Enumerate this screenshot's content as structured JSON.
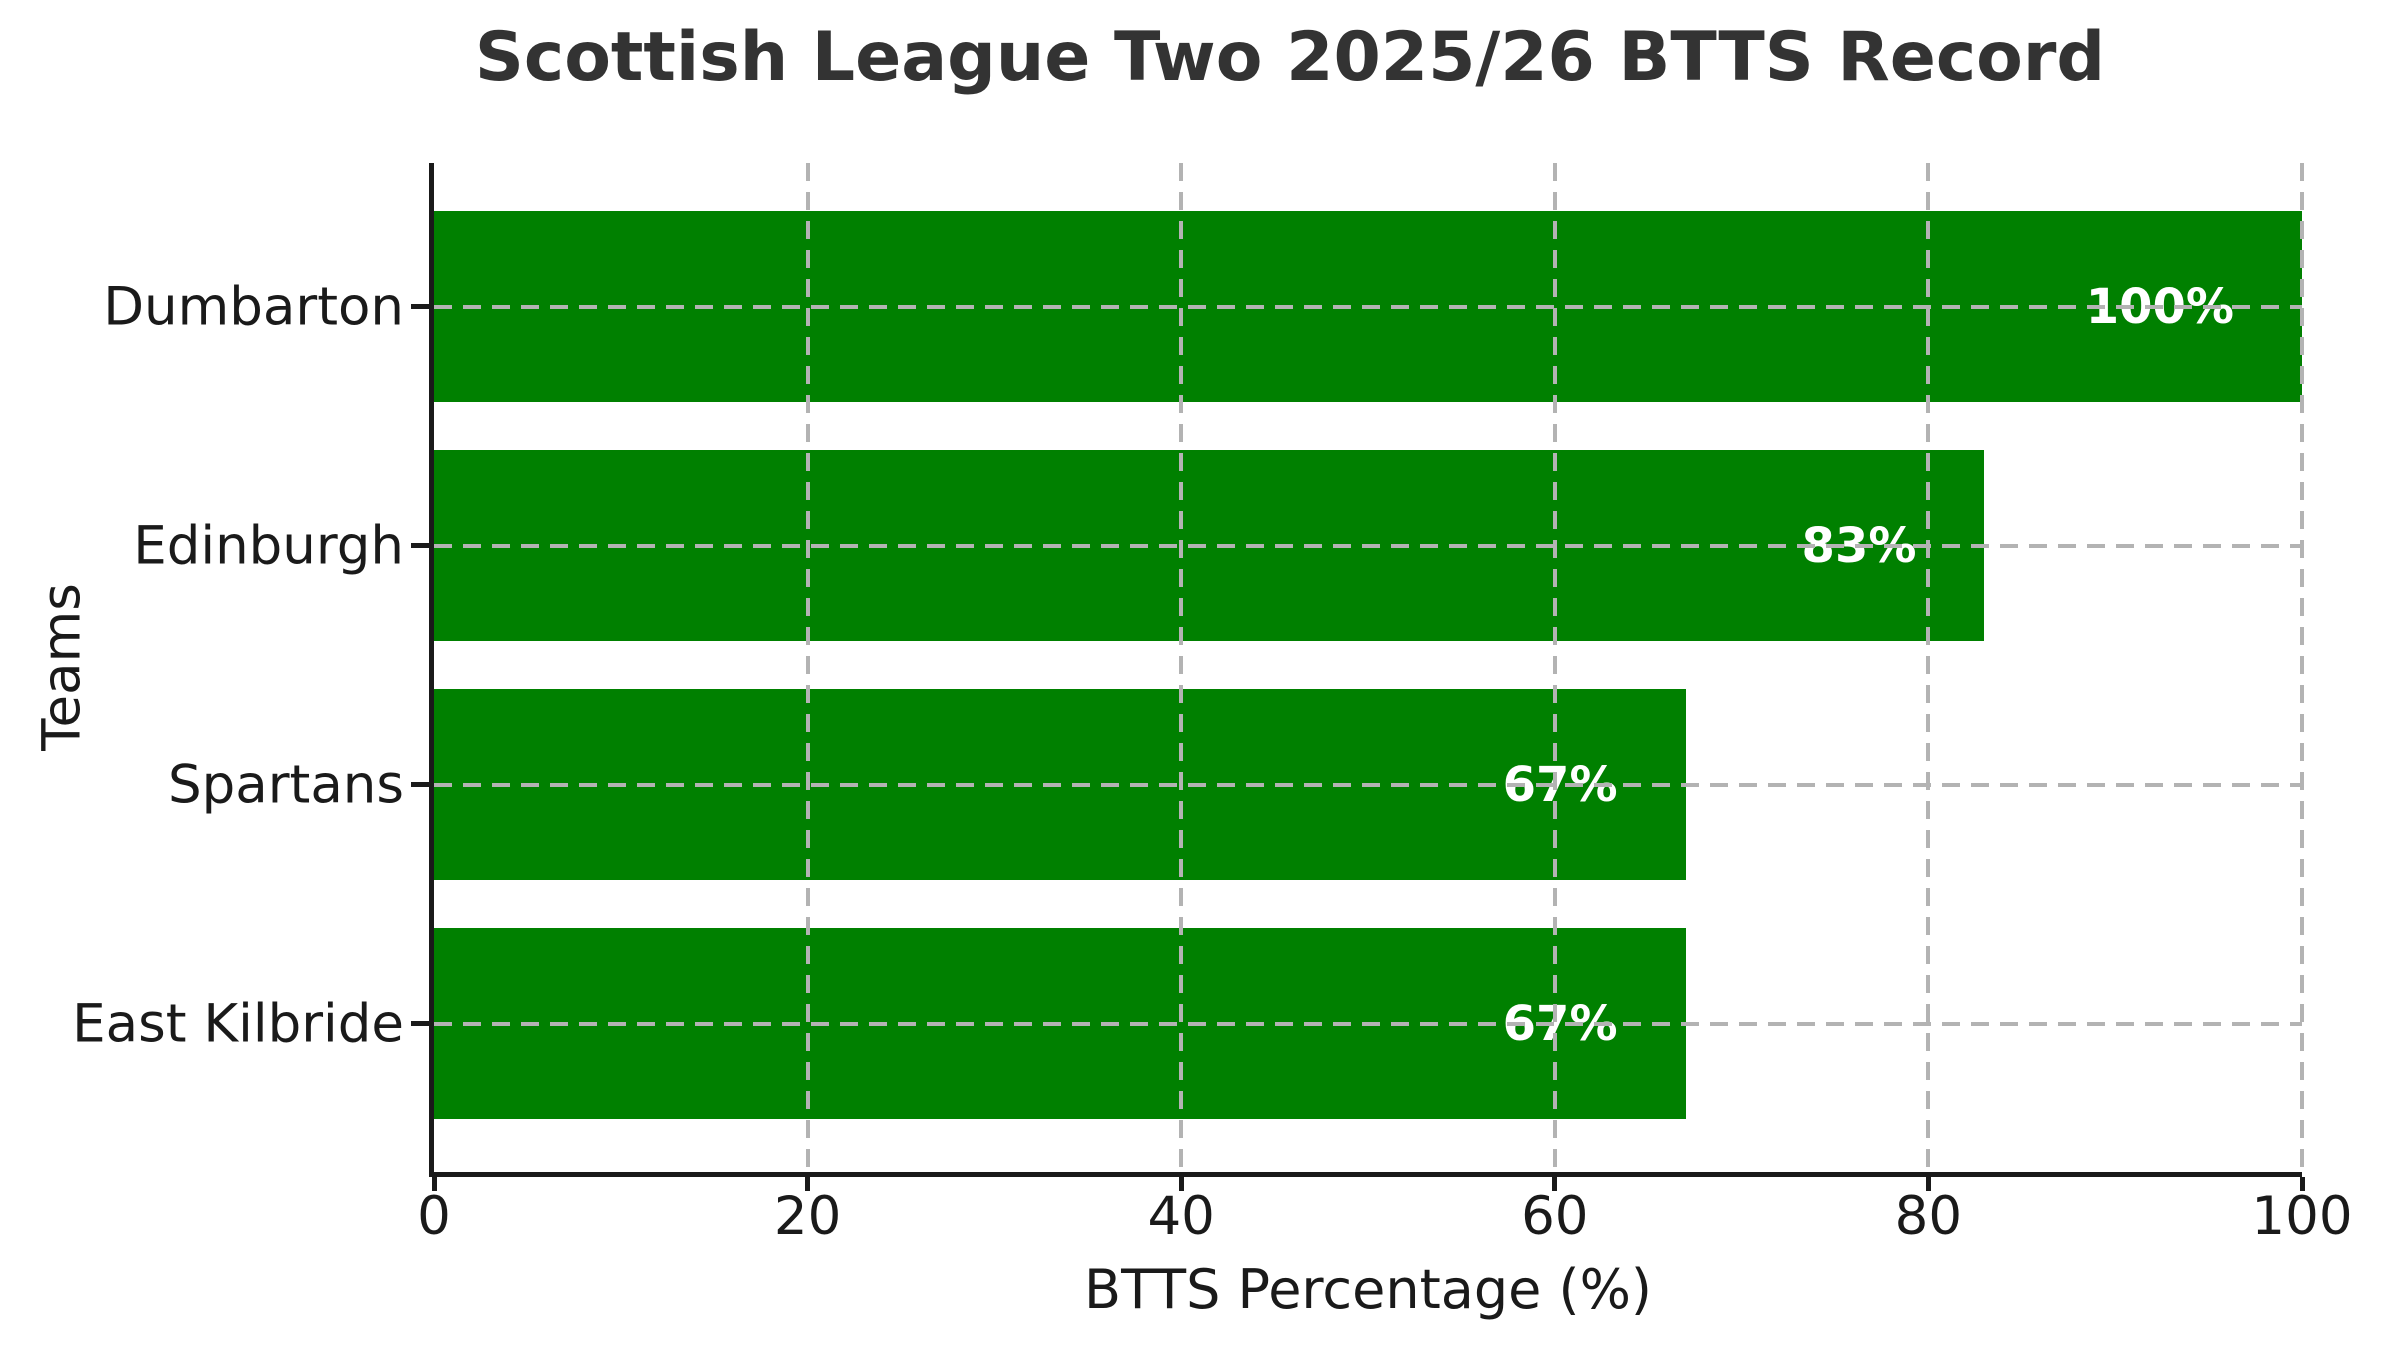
{
  "chart_data": {
    "type": "bar",
    "orientation": "horizontal",
    "title": "Scottish League Two 2025/26 BTTS Record",
    "xlabel": "BTTS Percentage (%)",
    "ylabel": "Teams",
    "categories": [
      "Dumbarton",
      "Edinburgh",
      "Spartans",
      "East Kilbride"
    ],
    "values": [
      100,
      83,
      67,
      67
    ],
    "bar_labels": [
      "100%",
      "83%",
      "67%",
      "67%"
    ],
    "xlim": [
      0,
      100
    ],
    "xticks": [
      0,
      20,
      40,
      60,
      80,
      100
    ],
    "xtick_labels": [
      "0",
      "20",
      "40",
      "60",
      "80",
      "100"
    ],
    "bar_color": "#008000",
    "bar_label_color": "#ffffff",
    "grid": true,
    "grid_style": "dashed",
    "grid_color": "#b3b3b3",
    "legend_position": "none"
  }
}
